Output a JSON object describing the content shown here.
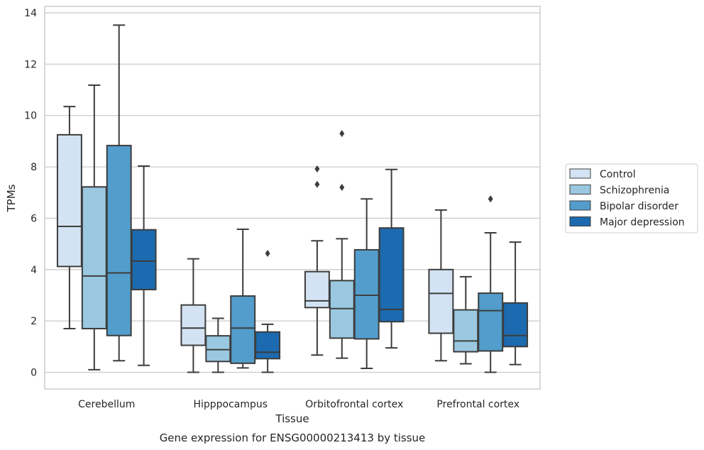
{
  "caption": "Gene expression for ENSG00000213413 by tissue",
  "colors": {
    "grid": "#cccccc",
    "frame": "#cccccc",
    "box_edge": "#3d3d3d",
    "series": [
      "#d3e3f3",
      "#9ac8e0",
      "#529dcc",
      "#1c6aaf"
    ]
  },
  "chart_data": {
    "type": "box",
    "xlabel": "Tissue",
    "ylabel": "TPMs",
    "ylim": [
      -0.65,
      14.25
    ],
    "yticks": [
      0,
      2,
      4,
      6,
      8,
      10,
      12,
      14
    ],
    "grid": true,
    "legend_position": "right-outside",
    "categories": [
      "Cerebellum",
      "Hipppocampus",
      "Orbitofrontal cortex",
      "Prefrontal cortex"
    ],
    "series": [
      {
        "name": "Control",
        "boxes": [
          {
            "whislo": 1.7,
            "q1": 4.12,
            "med": 5.68,
            "q3": 9.25,
            "whishi": 10.35,
            "fliers": []
          },
          {
            "whislo": 0.0,
            "q1": 1.05,
            "med": 1.72,
            "q3": 2.62,
            "whishi": 4.42,
            "fliers": []
          },
          {
            "whislo": 0.67,
            "q1": 2.52,
            "med": 2.78,
            "q3": 3.92,
            "whishi": 5.12,
            "fliers": [
              7.32,
              7.92
            ]
          },
          {
            "whislo": 0.45,
            "q1": 1.52,
            "med": 3.07,
            "q3": 4.0,
            "whishi": 6.32,
            "fliers": []
          }
        ]
      },
      {
        "name": "Schizophrenia",
        "boxes": [
          {
            "whislo": 0.1,
            "q1": 1.7,
            "med": 3.75,
            "q3": 7.22,
            "whishi": 11.18,
            "fliers": []
          },
          {
            "whislo": 0.0,
            "q1": 0.42,
            "med": 0.88,
            "q3": 1.42,
            "whishi": 2.1,
            "fliers": []
          },
          {
            "whislo": 0.55,
            "q1": 1.33,
            "med": 2.48,
            "q3": 3.57,
            "whishi": 5.2,
            "fliers": [
              7.2,
              9.3
            ]
          },
          {
            "whislo": 0.33,
            "q1": 0.8,
            "med": 1.22,
            "q3": 2.43,
            "whishi": 3.72,
            "fliers": []
          }
        ]
      },
      {
        "name": "Bipolar disorder",
        "boxes": [
          {
            "whislo": 0.45,
            "q1": 1.43,
            "med": 3.87,
            "q3": 8.83,
            "whishi": 13.52,
            "fliers": []
          },
          {
            "whislo": 0.17,
            "q1": 0.35,
            "med": 1.72,
            "q3": 2.97,
            "whishi": 5.57,
            "fliers": []
          },
          {
            "whislo": 0.15,
            "q1": 1.3,
            "med": 3.0,
            "q3": 4.77,
            "whishi": 6.75,
            "fliers": []
          },
          {
            "whislo": 0.0,
            "q1": 0.83,
            "med": 2.4,
            "q3": 3.08,
            "whishi": 5.43,
            "fliers": [
              6.75
            ]
          }
        ]
      },
      {
        "name": "Major depression",
        "boxes": [
          {
            "whislo": 0.27,
            "q1": 3.22,
            "med": 4.33,
            "q3": 5.55,
            "whishi": 8.03,
            "fliers": []
          },
          {
            "whislo": 0.0,
            "q1": 0.53,
            "med": 0.78,
            "q3": 1.57,
            "whishi": 1.87,
            "fliers": [
              4.63
            ]
          },
          {
            "whislo": 0.95,
            "q1": 1.97,
            "med": 2.45,
            "q3": 5.62,
            "whishi": 7.9,
            "fliers": []
          },
          {
            "whislo": 0.3,
            "q1": 1.0,
            "med": 1.43,
            "q3": 2.7,
            "whishi": 5.07,
            "fliers": []
          }
        ]
      }
    ]
  }
}
